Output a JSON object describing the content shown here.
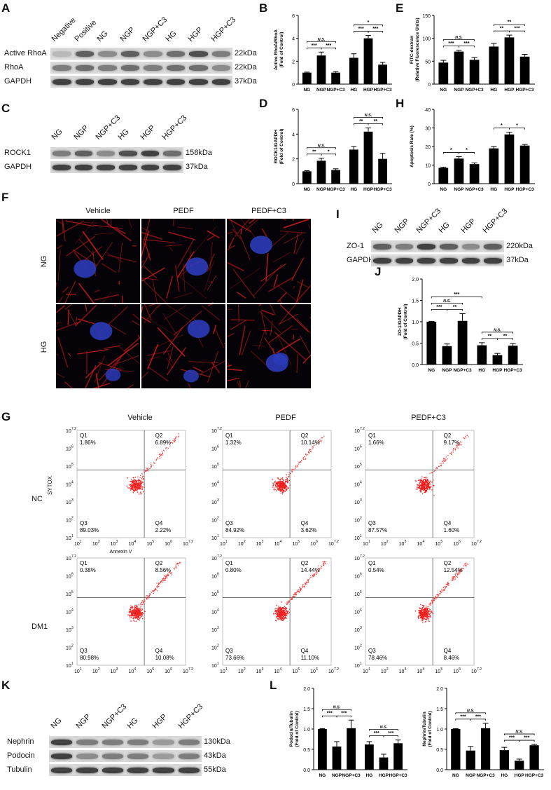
{
  "panels": {
    "A": "A",
    "B": "B",
    "C": "C",
    "D": "D",
    "E": "E",
    "F": "F",
    "G": "G",
    "H": "H",
    "I": "I",
    "J": "J",
    "K": "K",
    "L": "L"
  },
  "blotA": {
    "lanes": [
      "Negative",
      "Positive",
      "NG",
      "NGP",
      "NGP+C3",
      "HG",
      "HGP",
      "HGP+C3"
    ],
    "rows": [
      {
        "name": "Active RhoA",
        "kda": "22kDa"
      },
      {
        "name": "RhoA",
        "kda": "22kDa"
      },
      {
        "name": "GAPDH",
        "kda": "37kDa"
      }
    ]
  },
  "blotC": {
    "lanes": [
      "NG",
      "NGP",
      "NGP+C3",
      "HG",
      "HGP",
      "HGP+C3"
    ],
    "rows": [
      {
        "name": "ROCK1",
        "kda": "158kDa"
      },
      {
        "name": "GAPDH",
        "kda": "37kDa"
      }
    ]
  },
  "blotI": {
    "lanes": [
      "NG",
      "NGP",
      "NGP+C3",
      "HG",
      "HGP",
      "HGP+C3"
    ],
    "rows": [
      {
        "name": "ZO-1",
        "kda": "220kDa"
      },
      {
        "name": "GAPDH",
        "kda": "37kDa"
      }
    ]
  },
  "blotK": {
    "lanes": [
      "NG",
      "NGP",
      "NGP+C3",
      "HG",
      "HGP",
      "HGP+C3"
    ],
    "rows": [
      {
        "name": "Nephrin",
        "kda": "130kDa"
      },
      {
        "name": "Podocin",
        "kda": "43kDa"
      },
      {
        "name": "Tubulin",
        "kda": "55kDa"
      }
    ]
  },
  "chart_data": [
    {
      "id": "B",
      "type": "bar",
      "categories": [
        "NG",
        "NGP",
        "NGP+C3",
        "HG",
        "HGP",
        "HGP+C3"
      ],
      "values": [
        1.0,
        2.5,
        1.0,
        2.3,
        4.0,
        1.7
      ],
      "errors": [
        0.05,
        0.3,
        0.1,
        0.35,
        0.25,
        0.2
      ],
      "ylabel": "Active RhoA/RhoA",
      "ylabel2": "(Fold of Control)",
      "ylim": [
        0,
        6
      ],
      "yticks": [
        "0",
        "2",
        "4",
        "6"
      ],
      "sig": [
        {
          "a": 0,
          "b": 2,
          "label": "N.S.",
          "level": 0
        },
        {
          "a": 0,
          "b": 1,
          "label": "***",
          "level": 1
        },
        {
          "a": 1,
          "b": 2,
          "label": "***",
          "level": 1
        },
        {
          "a": 3,
          "b": 5,
          "label": "*",
          "level": 0
        },
        {
          "a": 3,
          "b": 4,
          "label": "***",
          "level": 1
        },
        {
          "a": 4,
          "b": 5,
          "label": "***",
          "level": 1
        }
      ]
    },
    {
      "id": "E",
      "type": "bar",
      "categories": [
        "NG",
        "NGP",
        "NGP+C3",
        "HG",
        "HGP",
        "HGP+C3"
      ],
      "values": [
        47,
        71,
        53,
        82,
        102,
        60
      ],
      "errors": [
        5,
        3,
        5,
        7,
        5,
        5
      ],
      "ylabel": "FITC-dextran",
      "ylabel2": "(Relative Fluorescence Units)",
      "ylim": [
        0,
        150
      ],
      "yticks": [
        "0",
        "50",
        "100",
        "150"
      ],
      "sig": [
        {
          "a": 0,
          "b": 2,
          "label": "N.S.",
          "level": 0
        },
        {
          "a": 0,
          "b": 1,
          "label": "***",
          "level": 1
        },
        {
          "a": 1,
          "b": 2,
          "label": "***",
          "level": 1
        },
        {
          "a": 3,
          "b": 5,
          "label": "**",
          "level": 0
        },
        {
          "a": 3,
          "b": 4,
          "label": "**",
          "level": 1
        },
        {
          "a": 4,
          "b": 5,
          "label": "***",
          "level": 1
        }
      ]
    },
    {
      "id": "D",
      "type": "bar",
      "categories": [
        "NG",
        "NGP",
        "NGP+C3",
        "HG",
        "HGP",
        "HGP+C3"
      ],
      "values": [
        1.0,
        1.85,
        1.1,
        2.75,
        4.2,
        2.0
      ],
      "errors": [
        0.05,
        0.2,
        0.1,
        0.25,
        0.3,
        0.45
      ],
      "ylabel": "ROCK1/GAPDH",
      "ylabel2": "(Fold of Control)",
      "ylim": [
        0,
        6
      ],
      "yticks": [
        "0",
        "2",
        "4",
        "6"
      ],
      "sig": [
        {
          "a": 0,
          "b": 2,
          "label": "N.S.",
          "level": 0
        },
        {
          "a": 0,
          "b": 1,
          "label": "**",
          "level": 1
        },
        {
          "a": 1,
          "b": 2,
          "label": "*",
          "level": 1
        },
        {
          "a": 3,
          "b": 5,
          "label": "N.S.",
          "level": 0
        },
        {
          "a": 3,
          "b": 4,
          "label": "**",
          "level": 1
        },
        {
          "a": 4,
          "b": 5,
          "label": "**",
          "level": 1
        }
      ]
    },
    {
      "id": "H",
      "type": "bar",
      "categories": [
        "NG",
        "NGP",
        "NGP+C3",
        "HG",
        "HGP",
        "HGP+C3"
      ],
      "values": [
        8.5,
        13.5,
        10.5,
        19,
        26.5,
        20.5
      ],
      "errors": [
        0.4,
        1,
        0.7,
        1,
        1.2,
        0.6
      ],
      "ylabel": "Apoptosis Rate (%)",
      "ylabel2": "",
      "ylim": [
        0,
        40
      ],
      "yticks": [
        "0",
        "10",
        "20",
        "30",
        "40"
      ],
      "sig": [
        {
          "a": 0,
          "b": 1,
          "label": "*",
          "level": 0
        },
        {
          "a": 1,
          "b": 2,
          "label": "*",
          "level": 0
        },
        {
          "a": 3,
          "b": 4,
          "label": "*",
          "level": 0
        },
        {
          "a": 4,
          "b": 5,
          "label": "*",
          "level": 0
        }
      ]
    },
    {
      "id": "J",
      "type": "bar",
      "categories": [
        "NG",
        "NGP",
        "NGP+C3",
        "HG",
        "HGP",
        "HGP+C3"
      ],
      "values": [
        1.0,
        0.43,
        1.02,
        0.45,
        0.22,
        0.44
      ],
      "errors": [
        0.01,
        0.05,
        0.17,
        0.06,
        0.04,
        0.05
      ],
      "ylabel": "ZO-1/GAPDH",
      "ylabel2": "(Fold of Control)",
      "ylim": [
        0,
        2.0
      ],
      "yticks": [
        "0.0",
        "0.5",
        "1.0",
        "1.5",
        "2.0"
      ],
      "sig": [
        {
          "a": 0,
          "b": 3,
          "label": "***",
          "level": 0
        },
        {
          "a": 0,
          "b": 2,
          "label": "N.S.",
          "level": 1
        },
        {
          "a": 0,
          "b": 1,
          "label": "***",
          "level": 2
        },
        {
          "a": 1,
          "b": 2,
          "label": "**",
          "level": 2
        },
        {
          "a": 3,
          "b": 5,
          "label": "N.S.",
          "level": 0
        },
        {
          "a": 3,
          "b": 4,
          "label": "**",
          "level": 1
        },
        {
          "a": 4,
          "b": 5,
          "label": "**",
          "level": 1
        }
      ]
    },
    {
      "id": "L1",
      "type": "bar",
      "categories": [
        "NG",
        "NGP",
        "NGP+C3",
        "HG",
        "HGP",
        "HGP+C3"
      ],
      "values": [
        1.0,
        0.57,
        1.02,
        0.62,
        0.3,
        0.65
      ],
      "errors": [
        0.01,
        0.12,
        0.2,
        0.07,
        0.08,
        0.08
      ],
      "ylabel": "Podocin/Tubulin",
      "ylabel2": "(Fold of Control)",
      "ylim": [
        0,
        2.0
      ],
      "yticks": [
        "0.0",
        "0.5",
        "1.0",
        "1.5",
        "2.0"
      ],
      "sig": [
        {
          "a": 0,
          "b": 2,
          "label": "N.S.",
          "level": 0
        },
        {
          "a": 0,
          "b": 1,
          "label": "***",
          "level": 1
        },
        {
          "a": 1,
          "b": 2,
          "label": "***",
          "level": 1
        },
        {
          "a": 3,
          "b": 5,
          "label": "N.S.",
          "level": 0
        },
        {
          "a": 3,
          "b": 4,
          "label": "***",
          "level": 1
        },
        {
          "a": 4,
          "b": 5,
          "label": "***",
          "level": 1
        }
      ]
    },
    {
      "id": "L2",
      "type": "bar",
      "categories": [
        "NG",
        "NGP",
        "NGP+C3",
        "HG",
        "HGP",
        "HGP+C3"
      ],
      "values": [
        1.0,
        0.47,
        1.02,
        0.48,
        0.22,
        0.6
      ],
      "errors": [
        0.01,
        0.1,
        0.12,
        0.07,
        0.04,
        0.02
      ],
      "ylabel": "Nephrin/Tubulin",
      "ylabel2": "(Fold of Control)",
      "ylim": [
        0,
        2.0
      ],
      "yticks": [
        "0.0",
        "0.5",
        "1.0",
        "1.5",
        "2.0"
      ],
      "sig": [
        {
          "a": 0,
          "b": 2,
          "label": "N.S.",
          "level": 0
        },
        {
          "a": 0,
          "b": 1,
          "label": "***",
          "level": 1
        },
        {
          "a": 1,
          "b": 2,
          "label": "***",
          "level": 1
        },
        {
          "a": 3,
          "b": 5,
          "label": "N.S.",
          "level": 0
        },
        {
          "a": 3,
          "b": 4,
          "label": "***",
          "level": 1
        },
        {
          "a": 4,
          "b": 5,
          "label": "***",
          "level": 1
        }
      ]
    }
  ],
  "microscopy": {
    "columns": [
      "Vehicle",
      "PEDF",
      "PEDF+C3"
    ],
    "rows": [
      "NG",
      "HG"
    ]
  },
  "flow": {
    "columns": [
      "Vehicle",
      "PEDF",
      "PEDF+C3"
    ],
    "rows": [
      "NC",
      "DM1"
    ],
    "xlabel": "Annexin V",
    "ylabel": "SYTOX",
    "quadrants": [
      [
        {
          "Q1": "1.86%",
          "Q2": "6.89%",
          "Q3": "89.03%",
          "Q4": "2.22%"
        },
        {
          "Q1": "1.32%",
          "Q2": "10.14%",
          "Q3": "84.92%",
          "Q4": "3.62%"
        },
        {
          "Q1": "1.66%",
          "Q2": "9.17%",
          "Q3": "87.57%",
          "Q4": "1.60%"
        }
      ],
      [
        {
          "Q1": "0.38%",
          "Q2": "8.56%",
          "Q3": "80.98%",
          "Q4": "10.08%"
        },
        {
          "Q1": "0.80%",
          "Q2": "14.44%",
          "Q3": "73.66%",
          "Q4": "11.10%"
        },
        {
          "Q1": "0.54%",
          "Q2": "12.54%",
          "Q3": "78.46%",
          "Q4": "8.46%"
        }
      ]
    ],
    "qnames": [
      "Q1",
      "Q2",
      "Q3",
      "Q4"
    ],
    "xticks": [
      "10",
      "10",
      "10",
      "10",
      "10",
      "10",
      "10"
    ],
    "xexp": [
      "1",
      "2",
      "3",
      "4",
      "5",
      "6",
      "7.2"
    ]
  }
}
